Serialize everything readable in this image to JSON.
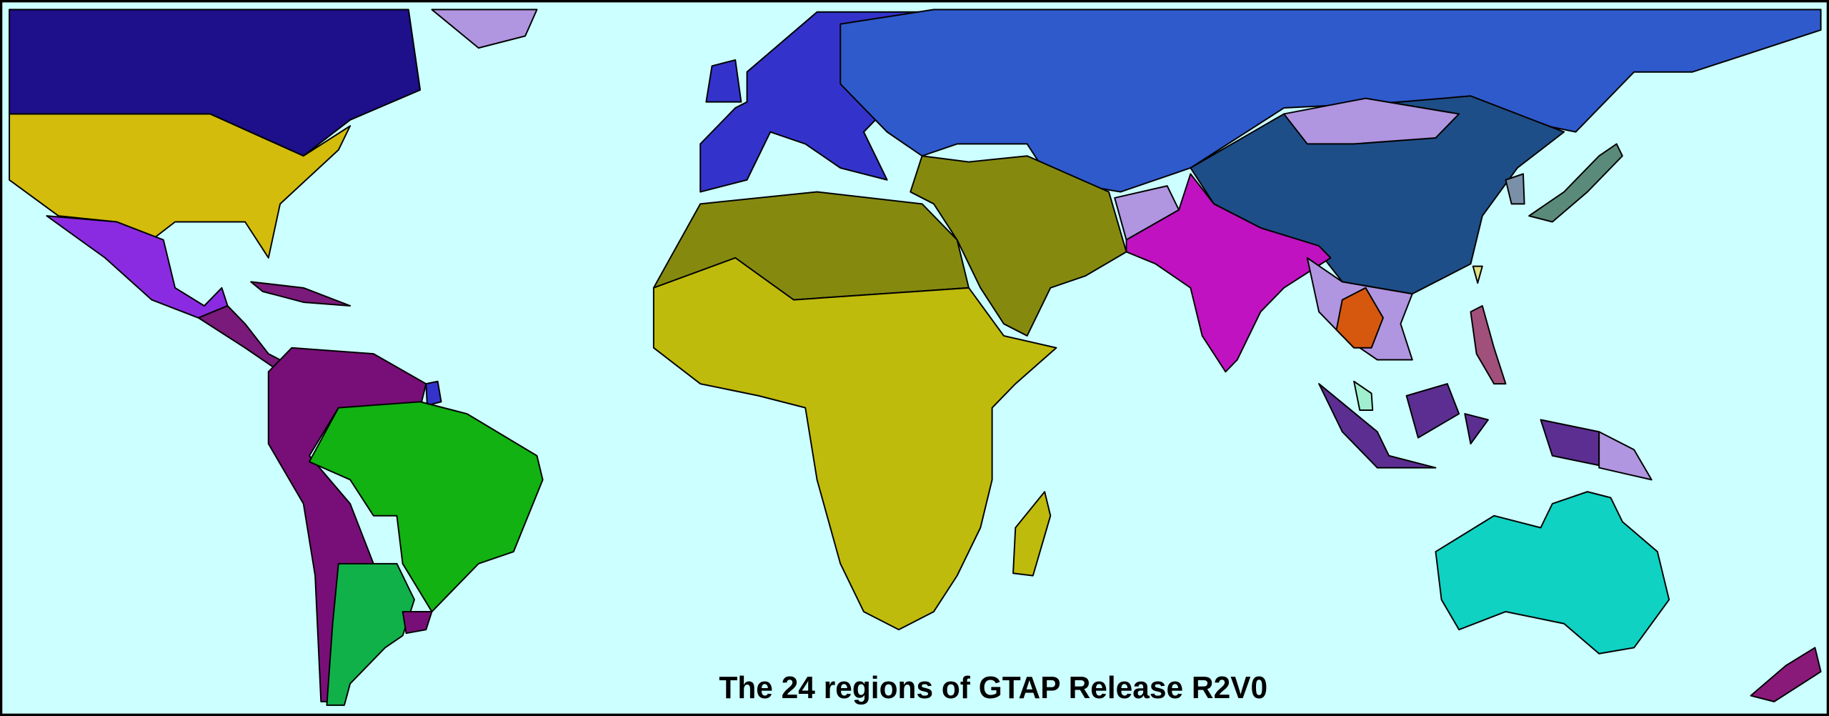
{
  "title": "The 24 regions of GTAP Release R2V0"
}
